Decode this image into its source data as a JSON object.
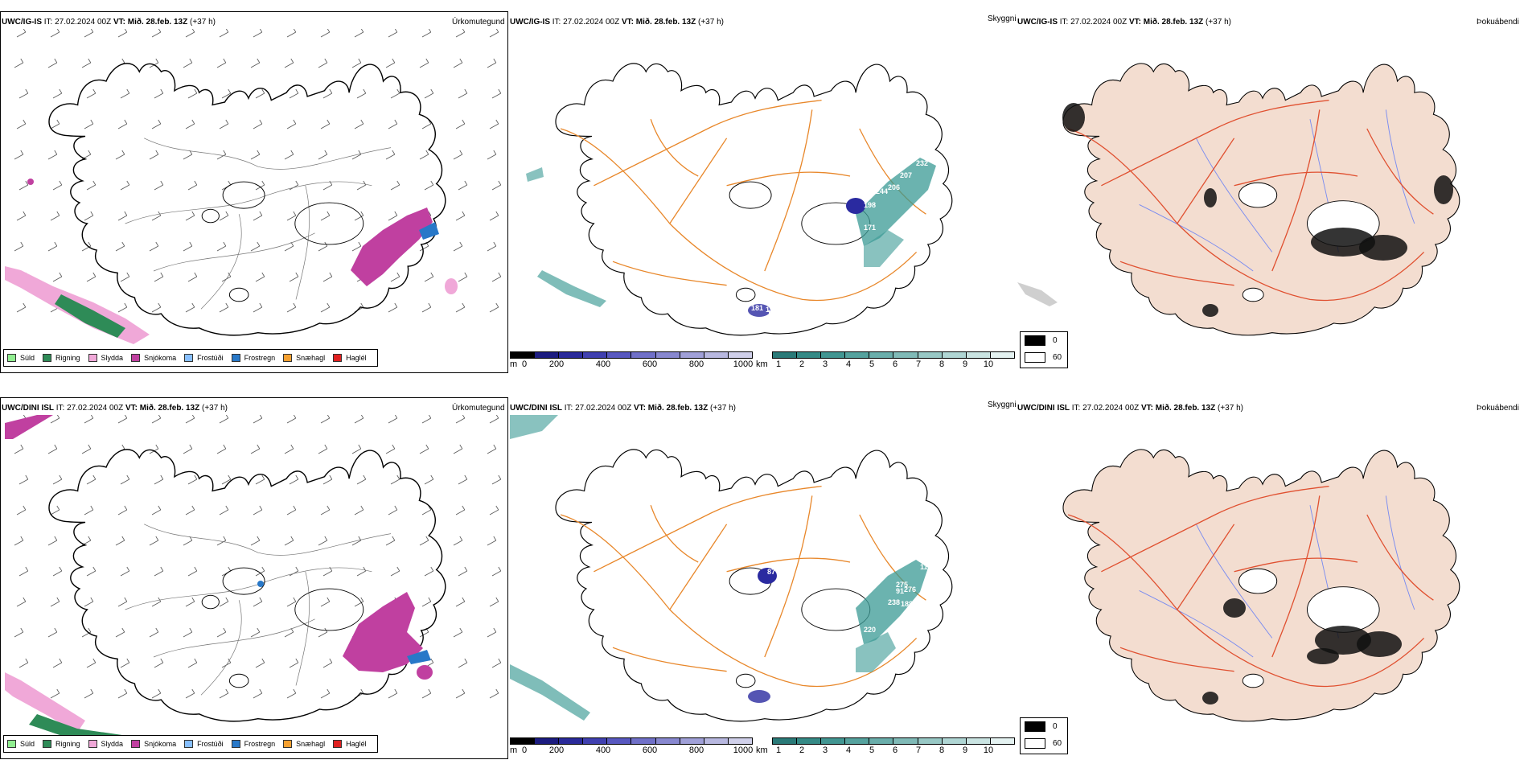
{
  "rows": [
    {
      "model": "UWC/IG-IS",
      "it_label": "IT:",
      "it_value": "27.02.2024 00Z",
      "vt_label": "VT:",
      "vt_value": "Mið. 28.feb. 13Z",
      "lead": "(+37 h)",
      "panel1_title": "Úrkomutegund",
      "panel2_title": "Skyggni",
      "panel3_title": "Þokuábendi"
    },
    {
      "model": "UWC/DINI ISL",
      "it_label": "IT:",
      "it_value": "27.02.2024 00Z",
      "vt_label": "VT:",
      "vt_value": "Mið. 28.feb. 13Z",
      "lead": "(+37 h)",
      "panel1_title": "Úrkomutegund",
      "panel2_title": "Skyggni",
      "panel3_title": "Þokuábendi"
    }
  ],
  "precip_legend": [
    {
      "label": "Súld",
      "color": "#90ee90"
    },
    {
      "label": "Rigning",
      "color": "#2e8b57"
    },
    {
      "label": "Slydda",
      "color": "#f0a8d8"
    },
    {
      "label": "Snjókoma",
      "color": "#c040a0"
    },
    {
      "label": "Frostúði",
      "color": "#87bfff"
    },
    {
      "label": "Frostregn",
      "color": "#2878c8"
    },
    {
      "label": "Snæhagl",
      "color": "#f5a030"
    },
    {
      "label": "Haglél",
      "color": "#e02020"
    }
  ],
  "vis_scale_m": {
    "unit": "m",
    "ticks": [
      "0",
      "200",
      "400",
      "600",
      "800",
      "1000"
    ]
  },
  "vis_scale_km": {
    "unit": "km",
    "ticks": [
      "1",
      "2",
      "3",
      "4",
      "5",
      "6",
      "7",
      "8",
      "9",
      "10"
    ]
  },
  "cloud_legend": [
    {
      "label": "0",
      "color": "#000000"
    },
    {
      "label": "60",
      "color": "#ffffff"
    }
  ],
  "top_vis_labels": [
    "232",
    "207",
    "206",
    "244",
    "198",
    "171",
    "144",
    "181",
    "11",
    "107"
  ],
  "bottom_vis_labels": [
    "87",
    "275",
    "276",
    "238",
    "188",
    "220",
    "11",
    "91"
  ],
  "colors": {
    "roads": "#e8872a",
    "coast": "#000000",
    "snow": "#c040a0",
    "land_fog": "#f3ddd0",
    "fog_roads": "#e05030",
    "fog_rivers": "#7a8cf0",
    "vis_teal": "#3a9a94",
    "vis_blue": "#2a2aa0"
  }
}
